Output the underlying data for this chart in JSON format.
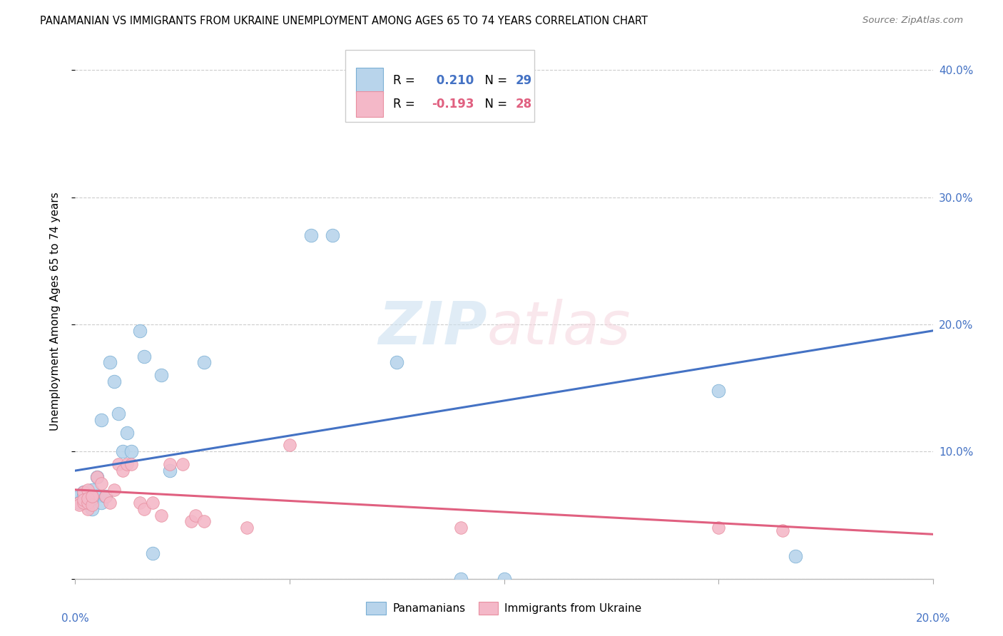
{
  "title": "PANAMANIAN VS IMMIGRANTS FROM UKRAINE UNEMPLOYMENT AMONG AGES 65 TO 74 YEARS CORRELATION CHART",
  "source": "Source: ZipAtlas.com",
  "ylabel": "Unemployment Among Ages 65 to 74 years",
  "legend_bottom": [
    "Panamanians",
    "Immigrants from Ukraine"
  ],
  "r_blue": 0.21,
  "n_blue": 29,
  "r_pink": -0.193,
  "n_pink": 28,
  "xlim": [
    0.0,
    0.2
  ],
  "ylim": [
    0.0,
    0.42
  ],
  "yticks": [
    0.0,
    0.1,
    0.2,
    0.3,
    0.4
  ],
  "ytick_labels": [
    "",
    "10.0%",
    "20.0%",
    "30.0%",
    "40.0%"
  ],
  "blue_color": "#b8d4eb",
  "pink_color": "#f4b8c8",
  "blue_edge_color": "#7AAFD4",
  "pink_edge_color": "#E88FA0",
  "blue_line_color": "#4472C4",
  "pink_line_color": "#E06080",
  "blue_scatter_x": [
    0.001,
    0.002,
    0.003,
    0.004,
    0.004,
    0.005,
    0.005,
    0.006,
    0.006,
    0.007,
    0.008,
    0.009,
    0.01,
    0.011,
    0.012,
    0.013,
    0.015,
    0.016,
    0.018,
    0.02,
    0.022,
    0.03,
    0.055,
    0.06,
    0.075,
    0.09,
    0.1,
    0.15,
    0.168
  ],
  "blue_scatter_y": [
    0.065,
    0.068,
    0.06,
    0.07,
    0.055,
    0.08,
    0.065,
    0.125,
    0.06,
    0.065,
    0.17,
    0.155,
    0.13,
    0.1,
    0.115,
    0.1,
    0.195,
    0.175,
    0.02,
    0.16,
    0.085,
    0.17,
    0.27,
    0.27,
    0.17,
    0.0,
    0.0,
    0.148,
    0.018
  ],
  "pink_scatter_x": [
    0.001,
    0.002,
    0.003,
    0.003,
    0.004,
    0.005,
    0.006,
    0.007,
    0.008,
    0.009,
    0.01,
    0.011,
    0.012,
    0.013,
    0.015,
    0.016,
    0.018,
    0.02,
    0.022,
    0.025,
    0.027,
    0.028,
    0.03,
    0.04,
    0.05,
    0.09,
    0.15,
    0.165
  ],
  "pink_scatter_y": [
    0.06,
    0.068,
    0.055,
    0.07,
    0.065,
    0.08,
    0.075,
    0.065,
    0.06,
    0.07,
    0.09,
    0.085,
    0.09,
    0.09,
    0.06,
    0.055,
    0.06,
    0.05,
    0.09,
    0.09,
    0.045,
    0.05,
    0.045,
    0.04,
    0.105,
    0.04,
    0.04,
    0.038
  ],
  "blue_line_y0": 0.085,
  "blue_line_y1": 0.195,
  "pink_line_y0": 0.07,
  "pink_line_y1": 0.035,
  "scatter_size_blue": 180,
  "scatter_size_pink": 160,
  "cluster_blue_x": [
    0.001,
    0.002,
    0.002,
    0.003,
    0.003,
    0.004
  ],
  "cluster_blue_y": [
    0.06,
    0.06,
    0.065,
    0.062,
    0.065,
    0.063
  ],
  "cluster_pink_x": [
    0.001,
    0.002,
    0.002,
    0.003,
    0.003,
    0.004,
    0.004
  ],
  "cluster_pink_y": [
    0.058,
    0.06,
    0.062,
    0.06,
    0.063,
    0.058,
    0.065
  ]
}
